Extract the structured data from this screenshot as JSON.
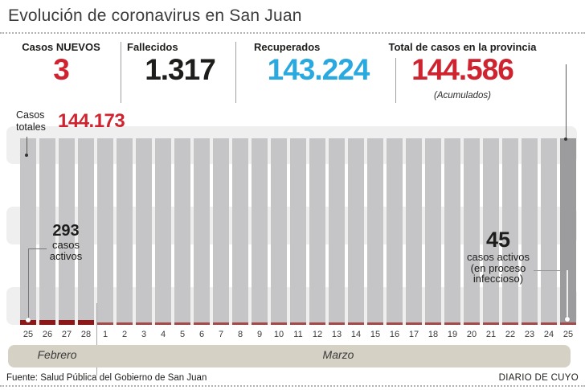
{
  "header": {
    "title": "Evolución de coronavirus en San Juan"
  },
  "stats": {
    "new_cases": {
      "label": "Casos NUEVOS",
      "value": "3",
      "color": "accent_red"
    },
    "deaths": {
      "label": "Fallecidos",
      "value": "1.317",
      "color": "number_black"
    },
    "recovered": {
      "label": "Recuperados",
      "value": "143.224",
      "color": "accent_blue"
    },
    "total": {
      "label": "Total de casos en la provincia",
      "value": "144.586",
      "note": "(Acumulados)",
      "color": "accent_red"
    }
  },
  "chart_data": {
    "type": "bar",
    "title": "Evolución de coronavirus en San Juan",
    "categories": [
      "25",
      "26",
      "27",
      "28",
      "1",
      "2",
      "3",
      "4",
      "5",
      "6",
      "7",
      "8",
      "9",
      "10",
      "11",
      "12",
      "13",
      "14",
      "15",
      "16",
      "17",
      "18",
      "19",
      "20",
      "21",
      "22",
      "23",
      "24",
      "25"
    ],
    "month_groups": [
      {
        "label": "Febrero",
        "count": 4
      },
      {
        "label": "Marzo",
        "count": 25
      }
    ],
    "series": [
      {
        "name": "Casos totales (acumulados)",
        "render": "tall gray bars, visually constant height",
        "labeled_points": [
          {
            "x": "25 Febrero",
            "y": 144173
          },
          {
            "x": "25 Marzo",
            "y": 144586
          }
        ]
      },
      {
        "name": "Casos activos",
        "render": "thin dark red segment at base of each bar (taller for Febrero days)",
        "labeled_points": [
          {
            "x": "25 Febrero",
            "y": 293
          },
          {
            "x": "25 Marzo",
            "y": 45
          }
        ]
      }
    ],
    "annotations": {
      "totals_label": "Casos\ntotales",
      "first_total_value": "144.173",
      "active_first_value": "293",
      "active_first_line1": "casos",
      "active_first_line2": "activos",
      "active_last_value": "45",
      "active_last_line1": "casos activos",
      "active_last_line2": "(en proceso",
      "active_last_line3": "infeccioso)"
    },
    "grid": "three horizontal light-gray rounded bands",
    "legend": "none"
  },
  "footer": {
    "source": "Fuente: Salud Pública del Gobierno de San Juan",
    "credit": "DIARIO DE CUYO"
  },
  "colors": {
    "accent_red": "#cf2430",
    "accent_blue": "#29a9e0",
    "number_black": "#1d1d1b",
    "bar": "#c5c5c7",
    "bar_last": "#9c9c9f",
    "active_feb": "#8c1919",
    "active_mar": "#a34b4b",
    "band": "#efeff0",
    "month_band": "#d5d1c4"
  }
}
